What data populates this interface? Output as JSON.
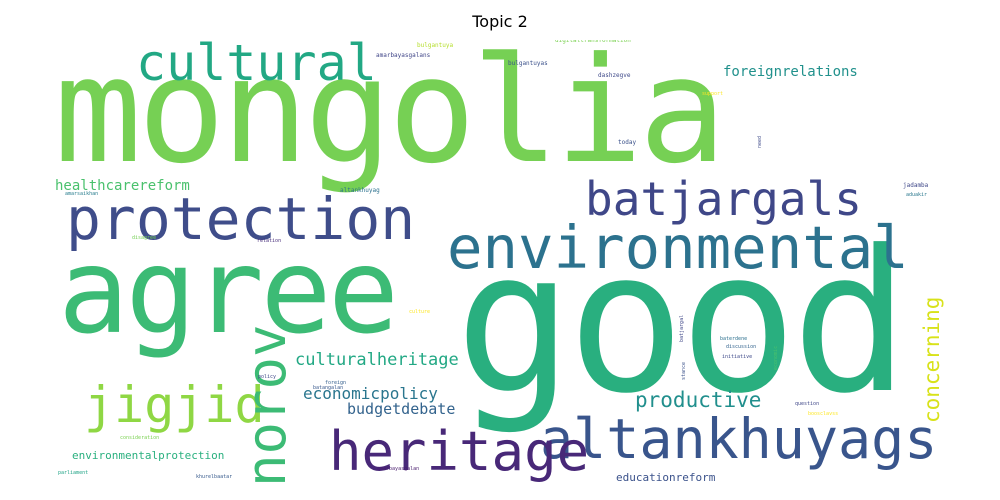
{
  "title": "Topic 2",
  "words": [
    {
      "text": "mongolia",
      "color": "#76d054"
    },
    {
      "text": "good",
      "color": "#29af7f"
    },
    {
      "text": "agree",
      "color": "#3cbb75"
    },
    {
      "text": "protection",
      "color": "#3f4d8a"
    },
    {
      "text": "environmental",
      "color": "#2c728e"
    },
    {
      "text": "altankhuyags",
      "color": "#39558c"
    },
    {
      "text": "batjargals",
      "color": "#3f4788"
    },
    {
      "text": "cultural",
      "color": "#22a884"
    },
    {
      "text": "heritage",
      "color": "#482878"
    },
    {
      "text": "jigjid",
      "color": "#8fd744"
    },
    {
      "text": "norov",
      "color": "#3cbb75"
    },
    {
      "text": "productive",
      "color": "#218f8d"
    },
    {
      "text": "concerning",
      "color": "#d8e219"
    },
    {
      "text": "culturalheritage",
      "color": "#22a884"
    },
    {
      "text": "economicpolicy",
      "color": "#2a768e"
    },
    {
      "text": "budgetdebate",
      "color": "#33638d"
    },
    {
      "text": "healthcarereform",
      "color": "#4ac16d"
    },
    {
      "text": "foreignrelations",
      "color": "#21918c"
    },
    {
      "text": "environmentalprotection",
      "color": "#2ab07f"
    },
    {
      "text": "educationreform",
      "color": "#3b528b"
    },
    {
      "text": "digitaltransformation",
      "color": "#7ad151"
    },
    {
      "text": "bulgantuya",
      "color": "#b5de2b"
    },
    {
      "text": "amarbayasgalans",
      "color": "#404688"
    },
    {
      "text": "bulgantuyas",
      "color": "#3b518b"
    },
    {
      "text": "dashzegve",
      "color": "#3e4989"
    },
    {
      "text": "support",
      "color": "#fde725"
    },
    {
      "text": "today",
      "color": "#3b528b"
    },
    {
      "text": "need",
      "color": "#3e4a89"
    },
    {
      "text": "altankhuyag",
      "color": "#2c718e"
    },
    {
      "text": "amarsaikhan",
      "color": "#287d8e"
    },
    {
      "text": "jadamba",
      "color": "#3f4889"
    },
    {
      "text": "aduakir",
      "color": "#2a788e"
    },
    {
      "text": "disagree",
      "color": "#75d054"
    },
    {
      "text": "relation",
      "color": "#472d7b"
    },
    {
      "text": "culture",
      "color": "#fde725"
    },
    {
      "text": "batjargal",
      "color": "#3f4788"
    },
    {
      "text": "baterdene",
      "color": "#2d708e"
    },
    {
      "text": "discussion",
      "color": "#33638d"
    },
    {
      "text": "initiative",
      "color": "#3e4989"
    },
    {
      "text": "economic",
      "color": "#4ac16d"
    },
    {
      "text": "stance",
      "color": "#3b528b"
    },
    {
      "text": "policy",
      "color": "#3f4788"
    },
    {
      "text": "foreign",
      "color": "#355f8d"
    },
    {
      "text": "batangalan",
      "color": "#38588c"
    },
    {
      "text": "question",
      "color": "#3f4788"
    },
    {
      "text": "consideration",
      "color": "#7ad151"
    },
    {
      "text": "parliament",
      "color": "#20a386"
    },
    {
      "text": "khurelbaatar",
      "color": "#375a8c"
    },
    {
      "text": "amarbayasgalan",
      "color": "#481b6d"
    },
    {
      "text": "boosclavss",
      "color": "#fde725"
    }
  ]
}
